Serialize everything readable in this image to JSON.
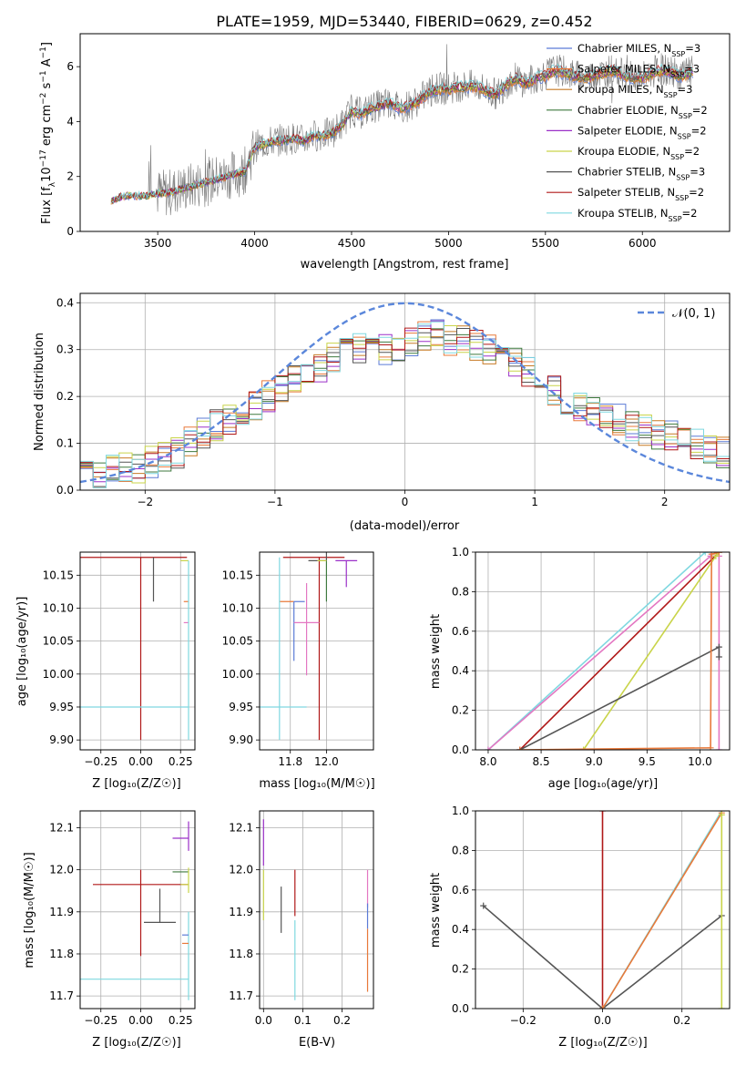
{
  "colors": {
    "Chabrier MILES": "#5b7bd6",
    "Salpeter MILES": "#e8793a",
    "Kroupa MILES": "#c77a24",
    "Chabrier ELODIE": "#3f7a3f",
    "Salpeter ELODIE": "#9b30c8",
    "Kroupa ELODIE": "#c9d44a",
    "Chabrier STELIB": "#555555",
    "Salpeter STELIB": "#b01818",
    "Kroupa STELIB": "#7fd8e0",
    "pink_model": "#e377c2",
    "normal_curve": "#5b87db"
  },
  "chart_data": [
    {
      "id": "spectrum",
      "type": "line",
      "title": "PLATE=1959, MJD=53440, FIBERID=0629, z=0.452",
      "xlabel": "wavelength [Angstrom, rest frame]",
      "ylabel": "Flux [f_λ10^-17 erg cm^-2 s^-1 A^-1]",
      "xlim": [
        3100,
        6450
      ],
      "ylim": [
        0,
        7.2
      ],
      "xticks": [
        3500,
        4000,
        4500,
        5000,
        5500,
        6000
      ],
      "yticks": [
        0,
        2,
        4,
        6
      ],
      "grid": false,
      "legend_position": "upper right",
      "legend": [
        {
          "label": "Chabrier MILES, N",
          "sub": "SSP",
          "tail": "=3",
          "color_key": "Chabrier MILES"
        },
        {
          "label": "Salpeter MILES, N",
          "sub": "SSP",
          "tail": "=3",
          "color_key": "Salpeter MILES"
        },
        {
          "label": "Kroupa MILES, N",
          "sub": "SSP",
          "tail": "=3",
          "color_key": "Kroupa MILES"
        },
        {
          "label": "Chabrier ELODIE, N",
          "sub": "SSP",
          "tail": "=2",
          "color_key": "Chabrier ELODIE"
        },
        {
          "label": "Salpeter ELODIE, N",
          "sub": "SSP",
          "tail": "=2",
          "color_key": "Salpeter ELODIE"
        },
        {
          "label": "Kroupa ELODIE, N",
          "sub": "SSP",
          "tail": "=2",
          "color_key": "Kroupa ELODIE"
        },
        {
          "label": "Chabrier STELIB, N",
          "sub": "SSP",
          "tail": "=3",
          "color_key": "Chabrier STELIB"
        },
        {
          "label": "Salpeter STELIB, N",
          "sub": "SSP",
          "tail": "=2",
          "color_key": "Salpeter STELIB"
        },
        {
          "label": "Kroupa STELIB, N",
          "sub": "SSP",
          "tail": "=2",
          "color_key": "Kroupa STELIB"
        }
      ],
      "data_series": {
        "name": "data",
        "x": [
          3260,
          3300,
          3350,
          3400,
          3450,
          3500,
          3550,
          3600,
          3650,
          3700,
          3750,
          3800,
          3850,
          3900,
          3950,
          4000,
          4050,
          4100,
          4150,
          4200,
          4250,
          4300,
          4350,
          4400,
          4450,
          4500,
          4550,
          4600,
          4650,
          4700,
          4750,
          4800,
          4850,
          4900,
          4950,
          5000,
          5050,
          5100,
          5150,
          5200,
          5250,
          5300,
          5350,
          5400,
          5450,
          5500,
          5550,
          5600,
          5650,
          5700,
          5750,
          5800,
          5850,
          5900,
          5950,
          6000,
          6050,
          6100,
          6150,
          6200,
          6250
        ],
        "y": [
          1.1,
          1.25,
          1.3,
          1.3,
          1.3,
          1.4,
          1.4,
          1.5,
          1.6,
          1.7,
          1.8,
          1.9,
          2.0,
          2.1,
          2.2,
          3.1,
          3.2,
          3.3,
          3.35,
          3.4,
          3.3,
          3.5,
          3.5,
          3.6,
          3.9,
          4.4,
          4.3,
          4.5,
          4.6,
          4.7,
          4.5,
          4.6,
          4.8,
          5.1,
          5.2,
          5.2,
          5.3,
          5.3,
          5.3,
          5.1,
          5.0,
          5.4,
          5.6,
          5.4,
          5.6,
          5.7,
          5.9,
          5.8,
          5.7,
          5.6,
          5.7,
          5.8,
          5.9,
          5.7,
          5.6,
          5.6,
          5.8,
          5.9,
          5.8,
          5.7,
          5.8
        ]
      }
    },
    {
      "id": "residuals",
      "type": "step",
      "xlabel": "(data-model)/error",
      "ylabel": "Normed distribution",
      "xlim": [
        -2.5,
        2.5
      ],
      "ylim": [
        0,
        0.42
      ],
      "xticks": [
        -2,
        -1,
        0,
        1,
        2
      ],
      "yticks": [
        0.0,
        0.1,
        0.2,
        0.3,
        0.4
      ],
      "grid": true,
      "legend_position": "upper right",
      "legend_label": "𝒩(0, 1)",
      "bins": [
        -2.5,
        -2.4,
        -2.3,
        -2.2,
        -2.1,
        -2.0,
        -1.9,
        -1.8,
        -1.7,
        -1.6,
        -1.5,
        -1.4,
        -1.3,
        -1.2,
        -1.1,
        -1.0,
        -0.9,
        -0.8,
        -0.7,
        -0.6,
        -0.5,
        -0.4,
        -0.3,
        -0.2,
        -0.1,
        0.0,
        0.1,
        0.2,
        0.3,
        0.4,
        0.5,
        0.6,
        0.7,
        0.8,
        0.9,
        1.0,
        1.1,
        1.2,
        1.3,
        1.4,
        1.5,
        1.6,
        1.7,
        1.8,
        1.9,
        2.0,
        2.1,
        2.2,
        2.3,
        2.4,
        2.5
      ],
      "envelope": [
        0.05,
        0.03,
        0.04,
        0.045,
        0.05,
        0.06,
        0.07,
        0.08,
        0.1,
        0.12,
        0.14,
        0.15,
        0.17,
        0.18,
        0.2,
        0.22,
        0.24,
        0.25,
        0.26,
        0.28,
        0.29,
        0.3,
        0.31,
        0.3,
        0.31,
        0.32,
        0.33,
        0.33,
        0.32,
        0.32,
        0.31,
        0.3,
        0.29,
        0.27,
        0.25,
        0.23,
        0.21,
        0.19,
        0.18,
        0.17,
        0.16,
        0.15,
        0.14,
        0.13,
        0.12,
        0.12,
        0.11,
        0.1,
        0.09,
        0.08
      ]
    },
    {
      "id": "age_vs_Z",
      "type": "errorbar",
      "xlabel": "Z [log₁₀(Z/Z☉)]",
      "ylabel": "age  [log₁₀(age/yr)]",
      "xlim": [
        -0.38,
        0.34
      ],
      "ylim": [
        9.885,
        10.185
      ],
      "xticks": [
        -0.25,
        0.0,
        0.25
      ],
      "xtick_labels": [
        "−0.25",
        "0.00",
        "0.25"
      ],
      "yticks": [
        9.9,
        9.95,
        10.0,
        10.05,
        10.1,
        10.15
      ],
      "grid": true,
      "points": [
        {
          "series": "Salpeter STELIB",
          "x": 0.0,
          "y": 10.177,
          "xerr": [
            0.38,
            0.29
          ],
          "yerr": [
            0.277,
            0.0
          ]
        },
        {
          "series": "Chabrier STELIB",
          "x": 0.08,
          "y": 10.11,
          "xerr": [
            0,
            0
          ],
          "yerr": [
            0,
            0.067
          ]
        },
        {
          "series": "Kroupa ELODIE",
          "x": 0.3,
          "y": 10.172,
          "xerr": [
            0.05,
            0.0
          ],
          "yerr": [
            0,
            0
          ]
        },
        {
          "series": "Salpeter MILES",
          "x": 0.3,
          "y": 10.11,
          "xerr": [
            0.03,
            0.0
          ],
          "yerr": [
            0,
            0
          ]
        },
        {
          "series": "pink_model",
          "x": 0.3,
          "y": 10.078,
          "xerr": [
            0.03,
            0.0
          ],
          "yerr": [
            0,
            0
          ]
        },
        {
          "series": "Kroupa STELIB",
          "x": 0.3,
          "y": 9.95,
          "xerr": [
            0.68,
            0.0
          ],
          "yerr": [
            0.05,
            0.222
          ]
        }
      ]
    },
    {
      "id": "age_vs_mass",
      "type": "errorbar",
      "xlabel": "mass [log₁₀(M/M☉)]",
      "ylabel": "",
      "xlim": [
        11.63,
        12.26
      ],
      "ylim": [
        9.885,
        10.185
      ],
      "xticks": [
        11.8,
        12.0
      ],
      "yticks": [
        9.9,
        9.95,
        10.0,
        10.05,
        10.1,
        10.15
      ],
      "grid": true,
      "points": [
        {
          "series": "Salpeter STELIB",
          "x": 11.96,
          "y": 10.177,
          "xerr": [
            0.2,
            0.14
          ],
          "yerr": [
            0.277,
            0.0
          ]
        },
        {
          "series": "Chabrier STELIB",
          "x": 12.0,
          "y": 10.172,
          "xerr": [
            0.1,
            0.0
          ],
          "yerr": [
            0,
            0.062
          ]
        },
        {
          "series": "Chabrier ELODIE",
          "x": 12.0,
          "y": 10.172,
          "xerr": [
            0,
            0
          ],
          "yerr": [
            0.062,
            0.0
          ]
        },
        {
          "series": "Salpeter ELODIE",
          "x": 12.11,
          "y": 10.172,
          "xerr": [
            0.06,
            0.06
          ],
          "yerr": [
            0.04,
            0.0
          ]
        },
        {
          "series": "Kroupa ELODIE",
          "x": 12.0,
          "y": 10.172,
          "xerr": [
            0.05,
            0.0
          ],
          "yerr": [
            0,
            0
          ]
        },
        {
          "series": "Salpeter MILES",
          "x": 11.82,
          "y": 10.11,
          "xerr": [
            0.08,
            0.0
          ],
          "yerr": [
            0,
            0
          ]
        },
        {
          "series": "Chabrier MILES",
          "x": 11.82,
          "y": 10.11,
          "xerr": [
            0,
            0.06
          ],
          "yerr": [
            0.09,
            0.0
          ]
        },
        {
          "series": "pink_model",
          "x": 11.89,
          "y": 10.078,
          "xerr": [
            0.07,
            0.07
          ],
          "yerr": [
            0.08,
            0.06
          ]
        },
        {
          "series": "Kroupa STELIB",
          "x": 11.74,
          "y": 9.95,
          "xerr": [
            0.12,
            0.15
          ],
          "yerr": [
            0.05,
            0.227
          ]
        }
      ]
    },
    {
      "id": "cumulative_age",
      "type": "line",
      "xlabel": "age  [log₁₀(age/yr)]",
      "ylabel": "mass weight",
      "xlim": [
        7.88,
        10.28
      ],
      "ylim": [
        0,
        1.0
      ],
      "xticks": [
        8.0,
        8.5,
        9.0,
        9.5,
        10.0
      ],
      "yticks": [
        0.0,
        0.2,
        0.4,
        0.6,
        0.8,
        1.0
      ],
      "grid": true,
      "series": [
        {
          "color_key": "Kroupa STELIB",
          "x": [
            8.0,
            10.05,
            10.18
          ],
          "y": [
            0.0,
            1.0,
            1.0
          ]
        },
        {
          "color_key": "pink_model",
          "x": [
            8.0,
            10.1,
            10.18,
            10.18
          ],
          "y": [
            0.0,
            0.98,
            0.98,
            0.0
          ]
        },
        {
          "color_key": "Salpeter STELIB",
          "x": [
            8.3,
            10.18,
            10.18
          ],
          "y": [
            0.0,
            1.0,
            1.0
          ]
        },
        {
          "color_key": "Kroupa ELODIE",
          "x": [
            8.9,
            10.15,
            10.18
          ],
          "y": [
            0.0,
            0.98,
            1.0
          ]
        },
        {
          "color_key": "Chabrier STELIB",
          "x": [
            8.3,
            10.18,
            10.18
          ],
          "y": [
            0.0,
            0.52,
            0.47
          ]
        },
        {
          "color_key": "Salpeter MILES",
          "x": [
            8.3,
            10.1,
            10.11,
            10.18
          ],
          "y": [
            0.0,
            0.01,
            0.99,
            1.0
          ]
        }
      ]
    },
    {
      "id": "mass_vs_Z",
      "type": "errorbar",
      "xlabel": "Z [log₁₀(Z/Z☉)]",
      "ylabel": "mass [log₁₀(M/M☉)]",
      "xlim": [
        -0.38,
        0.34
      ],
      "ylim": [
        11.67,
        12.14
      ],
      "xticks": [
        -0.25,
        0.0,
        0.25
      ],
      "xtick_labels": [
        "−0.25",
        "0.00",
        "0.25"
      ],
      "yticks": [
        11.7,
        11.8,
        11.9,
        12.0,
        12.1
      ],
      "grid": true,
      "points": [
        {
          "series": "Salpeter STELIB",
          "x": 0.0,
          "y": 11.965,
          "xerr": [
            0.3,
            0.3
          ],
          "yerr": [
            0.17,
            0.035
          ]
        },
        {
          "series": "Chabrier STELIB",
          "x": 0.12,
          "y": 11.875,
          "xerr": [
            0.1,
            0.1
          ],
          "yerr": [
            0,
            0.08
          ]
        },
        {
          "series": "Kroupa STELIB",
          "x": 0.3,
          "y": 11.74,
          "xerr": [
            0.68,
            0.0
          ],
          "yerr": [
            0.05,
            0.16
          ]
        },
        {
          "series": "Salpeter ELODIE",
          "x": 0.3,
          "y": 12.075,
          "xerr": [
            0.1,
            0.0
          ],
          "yerr": [
            0.03,
            0.04
          ]
        },
        {
          "series": "Chabrier ELODIE",
          "x": 0.3,
          "y": 11.995,
          "xerr": [
            0.1,
            0.0
          ],
          "yerr": [
            0,
            0
          ]
        },
        {
          "series": "Kroupa ELODIE",
          "x": 0.3,
          "y": 11.965,
          "xerr": [
            0.05,
            0.0
          ],
          "yerr": [
            0.02,
            0.04
          ]
        },
        {
          "series": "Chabrier MILES",
          "x": 0.3,
          "y": 11.845,
          "xerr": [
            0.04,
            0.0
          ],
          "yerr": [
            0,
            0
          ]
        },
        {
          "series": "Salpeter MILES",
          "x": 0.3,
          "y": 11.825,
          "xerr": [
            0.04,
            0.0
          ],
          "yerr": [
            0,
            0
          ]
        }
      ]
    },
    {
      "id": "mass_vs_ebv",
      "type": "errorbar",
      "xlabel": "E(B-V)",
      "ylabel": "",
      "xlim": [
        -0.01,
        0.28
      ],
      "ylim": [
        11.67,
        12.14
      ],
      "xticks": [
        0.0,
        0.1,
        0.2
      ],
      "yticks": [
        11.7,
        11.8,
        11.9,
        12.0,
        12.1
      ],
      "grid": true,
      "points": [
        {
          "series": "Salpeter ELODIE",
          "x": 0.0,
          "y": 12.09,
          "xerr": [
            0,
            0
          ],
          "yerr": [
            0.08,
            0.03
          ]
        },
        {
          "series": "Kroupa ELODIE",
          "x": 0.0,
          "y": 11.94,
          "xerr": [
            0,
            0
          ],
          "yerr": [
            0.06,
            0.06
          ]
        },
        {
          "series": "Chabrier STELIB",
          "x": 0.045,
          "y": 11.91,
          "xerr": [
            0,
            0
          ],
          "yerr": [
            0.06,
            0.05
          ]
        },
        {
          "series": "Salpeter STELIB",
          "x": 0.08,
          "y": 11.95,
          "xerr": [
            0,
            0
          ],
          "yerr": [
            0.06,
            0.05
          ]
        },
        {
          "series": "Kroupa STELIB",
          "x": 0.08,
          "y": 11.78,
          "xerr": [
            0,
            0
          ],
          "yerr": [
            0.09,
            0.1
          ]
        },
        {
          "series": "pink_model",
          "x": 0.265,
          "y": 11.96,
          "xerr": [
            0,
            0
          ],
          "yerr": [
            0.05,
            0.04
          ]
        },
        {
          "series": "Salpeter MILES",
          "x": 0.265,
          "y": 11.78,
          "xerr": [
            0,
            0
          ],
          "yerr": [
            0.07,
            0.08
          ]
        },
        {
          "series": "Chabrier MILES",
          "x": 0.265,
          "y": 11.89,
          "xerr": [
            0,
            0
          ],
          "yerr": [
            0.03,
            0.03
          ]
        }
      ]
    },
    {
      "id": "cumulative_Z",
      "type": "line",
      "xlabel": "Z [log₁₀(Z/Z☉)]",
      "ylabel": "mass weight",
      "xlim": [
        -0.32,
        0.32
      ],
      "ylim": [
        0,
        1.0
      ],
      "xticks": [
        -0.2,
        0.0,
        0.2
      ],
      "xtick_labels": [
        "−0.2",
        "0.0",
        "0.2"
      ],
      "yticks": [
        0.0,
        0.2,
        0.4,
        0.6,
        0.8,
        1.0
      ],
      "grid": true,
      "series": [
        {
          "color_key": "Chabrier STELIB",
          "x": [
            -0.3,
            0.0,
            0.3
          ],
          "y": [
            0.52,
            0.0,
            0.47
          ],
          "markers": true
        },
        {
          "color_key": "Salpeter STELIB",
          "x": [
            0.0,
            0.0
          ],
          "y": [
            0.0,
            1.0
          ],
          "markers": true
        },
        {
          "color_key": "Kroupa STELIB",
          "x": [
            0.0,
            0.3
          ],
          "y": [
            0.0,
            1.0
          ]
        },
        {
          "color_key": "Salpeter MILES",
          "x": [
            0.0,
            0.3
          ],
          "y": [
            0.0,
            0.99
          ]
        },
        {
          "color_key": "Kroupa ELODIE",
          "x": [
            0.3,
            0.3
          ],
          "y": [
            0.0,
            0.98
          ],
          "markers": true
        }
      ]
    }
  ]
}
